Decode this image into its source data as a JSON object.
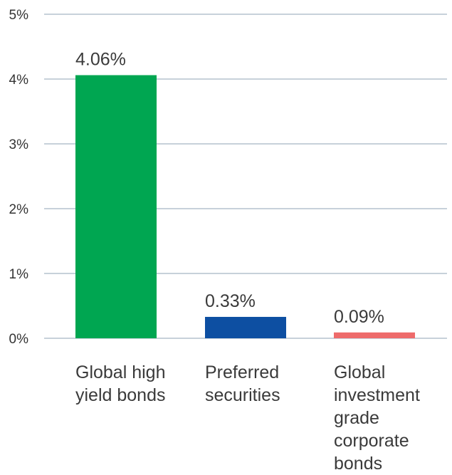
{
  "chart_data": {
    "type": "bar",
    "categories": [
      "Global high yield bonds",
      "Preferred securities",
      "Global investment grade corporate bonds"
    ],
    "category_lines": [
      [
        "Global high",
        "yield bonds"
      ],
      [
        "Preferred",
        "securities"
      ],
      [
        "Global",
        "investment",
        "grade",
        "corporate",
        "bonds"
      ]
    ],
    "values": [
      4.06,
      0.33,
      0.09
    ],
    "data_labels": [
      "4.06%",
      "0.33%",
      "0.09%"
    ],
    "colors": [
      "#00a651",
      "#0d4fa2",
      "#ee6b6b"
    ],
    "y_ticks": [
      0,
      1,
      2,
      3,
      4,
      5
    ],
    "y_tick_labels": [
      "0%",
      "1%",
      "2%",
      "3%",
      "4%",
      "5%"
    ],
    "ylim": [
      0,
      5
    ],
    "grid": true,
    "grid_color": "#8fa3b5",
    "title": "",
    "xlabel": "",
    "ylabel": ""
  }
}
